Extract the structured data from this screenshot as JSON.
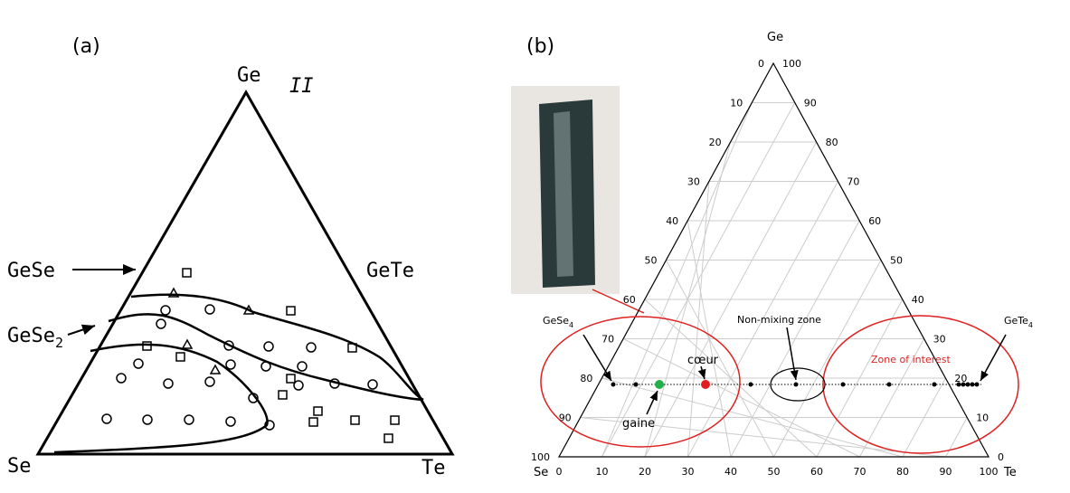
{
  "panel_a": {
    "label": "(a)",
    "apex": "Ge",
    "left": "Se",
    "right": "Te",
    "region": "II",
    "annotations": {
      "gese": "GeSe",
      "gete": "GeTe",
      "gese2": {
        "text": "GeSe",
        "sub": "2"
      }
    }
  },
  "panel_b": {
    "label": "(b)",
    "apex": "Ge",
    "left": "Se",
    "right": "Te",
    "bottom_ticks": [
      0,
      10,
      20,
      30,
      40,
      50,
      60,
      70,
      80,
      90,
      100
    ],
    "left_ticks": [
      0,
      10,
      20,
      30,
      40,
      50,
      60,
      70,
      80,
      90,
      100
    ],
    "right_ticks": [
      100,
      90,
      80,
      70,
      60,
      50,
      40,
      30,
      20,
      10,
      0
    ],
    "annotations": {
      "gese4": {
        "text": "GeSe",
        "sub": "4"
      },
      "gete4": {
        "text": "GeTe",
        "sub": "4"
      },
      "non_mixing": "Non-mixing zone",
      "coeur": "cœur",
      "gaine": "gaine",
      "zone": "Zone of interest"
    }
  }
}
